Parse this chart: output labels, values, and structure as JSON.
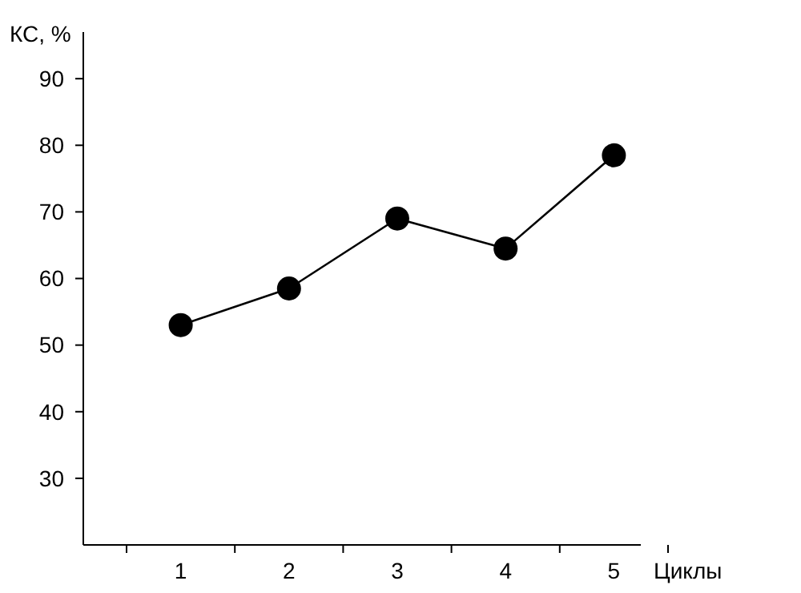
{
  "chart_data": {
    "type": "line",
    "ylabel": "КС, %",
    "xlabel": "Циклы",
    "categories": [
      "1",
      "2",
      "3",
      "4",
      "5"
    ],
    "series": [
      {
        "color": "#000000",
        "values": [
          53,
          58.5,
          69,
          64.5,
          78.5
        ]
      }
    ],
    "ylim": [
      20,
      97
    ],
    "yticks": [
      30,
      40,
      50,
      60,
      70,
      80,
      90
    ],
    "marker": "circle",
    "line_style": "solid",
    "grid": false
  }
}
